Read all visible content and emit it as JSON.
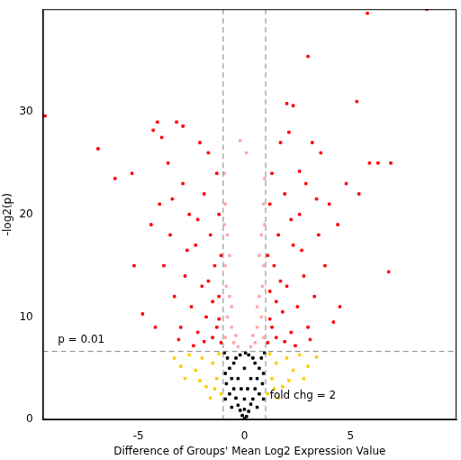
{
  "chart_data": {
    "type": "scatter",
    "x_label": "Difference of Groups' Mean Log2 Expression Value",
    "y_label": "-log2(p)",
    "xlim": [
      -9.5,
      10
    ],
    "xticks": [
      -5,
      0,
      5
    ],
    "ylim": [
      0,
      40
    ],
    "yticks": [
      0,
      10,
      20,
      30
    ],
    "grid": false,
    "marker": "square",
    "threshold_lines": {
      "x": [
        -1,
        1
      ],
      "y": [
        6.64
      ],
      "color": "#808080",
      "line_style": "dashed"
    },
    "annotations": [
      {
        "text": "p = 0.01",
        "x": -8.8,
        "y": 7.8
      },
      {
        "text": "fold chg = 2",
        "x": 1.2,
        "y": 2.3
      }
    ],
    "series": [
      {
        "color": "#ff0000",
        "x": [
          8.6,
          5.8,
          -9.4,
          -6.9,
          -5.3,
          -4.1,
          -4.3,
          -3.2,
          -2.9,
          -5.2,
          -4.8,
          6.8,
          6.9,
          6.3,
          5.9,
          5.3,
          3.0,
          2.0,
          2.3,
          2.6,
          4.5,
          5.4,
          -6.1,
          -1.1,
          -1.3,
          -1.2,
          -1.5,
          -1.8,
          -1.4,
          -1.6,
          -1.2,
          -2.0,
          -2.2,
          -2.5,
          -1.9,
          -2.3,
          -2.8,
          -3.0,
          -2.6,
          -1.3,
          -1.7,
          -3.3,
          -3.5,
          -2.9,
          -3.8,
          -4.0,
          -3.6,
          -2.1,
          -1.5,
          -1.1,
          -2.4,
          -3.1,
          -4.2,
          -1.7,
          -2.7,
          -3.9,
          -4.4,
          -1.2,
          -1.9,
          -2.2,
          -3.4,
          1.1,
          1.3,
          1.2,
          1.5,
          1.8,
          1.4,
          1.6,
          1.2,
          2.0,
          2.2,
          2.5,
          1.9,
          2.3,
          2.8,
          3.0,
          2.6,
          1.3,
          1.7,
          3.3,
          3.5,
          2.9,
          3.8,
          4.0,
          3.6,
          2.1,
          1.5,
          1.1,
          2.4,
          3.1,
          4.2,
          1.7,
          2.7,
          3.2,
          4.4,
          1.2,
          1.9,
          2.2,
          3.4,
          4.8
        ],
        "values": [
          40,
          39.6,
          29.6,
          26.4,
          24,
          29,
          28.2,
          29,
          28.6,
          15,
          10.3,
          14.4,
          25,
          25,
          25,
          31,
          35.4,
          30.8,
          30.6,
          24.2,
          11,
          22,
          23.5,
          7.5,
          9,
          12,
          8,
          10,
          15,
          18,
          20,
          13,
          8.5,
          11,
          22,
          17,
          14,
          9,
          20,
          24,
          26,
          12,
          18,
          23,
          15,
          21,
          25,
          27,
          11.5,
          16,
          7.2,
          7.8,
          9,
          13.5,
          16.5,
          27.5,
          19,
          9.8,
          7.6,
          19.5,
          21.5,
          7.5,
          9,
          12.5,
          8,
          10.5,
          15,
          18,
          21,
          13,
          8.5,
          11,
          22,
          17,
          14,
          9,
          20,
          24,
          27,
          12,
          18,
          23,
          15,
          21,
          26,
          28,
          11.5,
          16,
          7.2,
          7.8,
          9.5,
          13.5,
          16.5,
          27,
          19,
          9.8,
          7.6,
          19.5,
          21.5,
          23
        ]
      },
      {
        "color": "#ffaaaa",
        "x": [
          -0.9,
          -0.8,
          -0.7,
          -0.9,
          -0.6,
          -0.8,
          -0.9,
          -0.95,
          -0.5,
          -0.7,
          -0.4,
          -0.85,
          -0.2,
          -0.95,
          -0.6,
          0.9,
          0.8,
          0.7,
          0.9,
          0.6,
          0.8,
          0.9,
          0.95,
          0.5,
          0.7,
          0.4,
          0.85,
          0.1,
          0.95,
          0.6,
          -0.3,
          0.3
        ],
        "values": [
          8,
          10,
          12,
          15,
          9,
          18,
          21,
          24,
          7.5,
          16,
          8.2,
          13,
          27.2,
          19,
          11,
          8,
          10,
          12,
          15,
          9,
          18,
          21,
          23.5,
          7.5,
          16,
          8.2,
          13,
          26,
          19,
          11,
          7.1,
          7.1
        ]
      },
      {
        "color": "#ffcc00",
        "x": [
          -1.1,
          -1.3,
          -1.5,
          -1.8,
          -2.0,
          -2.3,
          -2.6,
          -3.0,
          -1.2,
          -1.6,
          -2.1,
          -3.3,
          -1.4,
          -2.8,
          1.1,
          1.3,
          1.5,
          1.8,
          2.0,
          2.3,
          2.6,
          3.0,
          1.2,
          1.6,
          2.1,
          3.4,
          1.4,
          2.8
        ],
        "values": [
          2.5,
          4,
          5.5,
          3.2,
          6,
          4.8,
          6.3,
          5.2,
          6.4,
          2.1,
          3.8,
          6.0,
          3.0,
          4.0,
          2.5,
          4,
          5.5,
          3.2,
          6,
          4.8,
          6.3,
          5.2,
          6.4,
          2.1,
          3.8,
          6.1,
          3.0,
          4.0
        ]
      },
      {
        "color": "#000000",
        "x": [
          0,
          0.1,
          -0.1,
          0.2,
          -0.2,
          0.3,
          -0.3,
          0.4,
          -0.4,
          0.5,
          -0.5,
          0.6,
          -0.6,
          0.7,
          -0.7,
          0.8,
          -0.8,
          0.9,
          -0.9,
          0.95,
          -0.95,
          0.5,
          -0.5,
          0.3,
          -0.3,
          0.2,
          -0.2,
          0,
          0,
          0.7,
          -0.7,
          0.9,
          -0.9,
          0.15,
          -0.15,
          0.4,
          -0.4,
          0.85,
          -0.85,
          0.6,
          -0.6,
          0.05,
          0
        ],
        "values": [
          0.1,
          0.3,
          0.4,
          0.8,
          0.9,
          1.5,
          1.4,
          2,
          2.1,
          3,
          3,
          4,
          4,
          5,
          5,
          6,
          6,
          4.5,
          4.5,
          6.5,
          6.5,
          5.5,
          5.5,
          4,
          4,
          6.3,
          6.3,
          2,
          5,
          2.5,
          2.5,
          2,
          2,
          3,
          3,
          6,
          6,
          3.5,
          3.5,
          1.2,
          1.2,
          6.5,
          1
        ]
      }
    ]
  }
}
